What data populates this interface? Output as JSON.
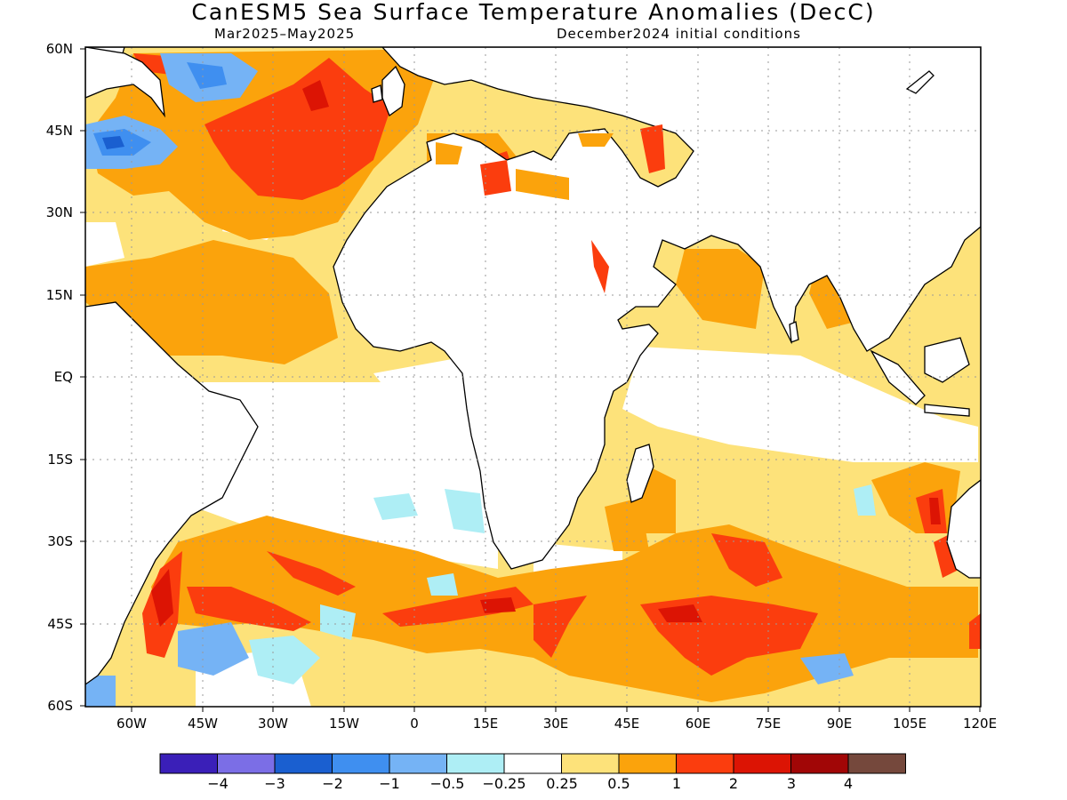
{
  "title": "CanESM5 Sea Surface Temperature Anomalies (DecC)",
  "subtitle_left": "Mar2025–May2025",
  "subtitle_right": "December2024 initial conditions",
  "lat_labels": [
    "60N",
    "45N",
    "30N",
    "15N",
    "EQ",
    "15S",
    "30S",
    "45S",
    "60S"
  ],
  "lon_labels": [
    "60W",
    "45W",
    "30W",
    "15W",
    "0",
    "15E",
    "30E",
    "45E",
    "60E",
    "75E",
    "90E",
    "105E",
    "120E"
  ],
  "colorbar": {
    "colors": [
      "#3a1fb8",
      "#7b6ee6",
      "#1a5fd0",
      "#3f8ff0",
      "#75b3f5",
      "#aeeef5",
      "#ffffff",
      "#fde27a",
      "#fba30c",
      "#fb3d0e",
      "#dc1404",
      "#a10606",
      "#75483c"
    ],
    "labels": [
      "−4",
      "−3",
      "−2",
      "−1",
      "−0.5",
      "−0.25",
      "0.25",
      "0.5",
      "1",
      "2",
      "3",
      "4"
    ]
  },
  "colors": {
    "land": "#ffffff",
    "coast": "#000000",
    "grid": "#9a9a9a"
  }
}
